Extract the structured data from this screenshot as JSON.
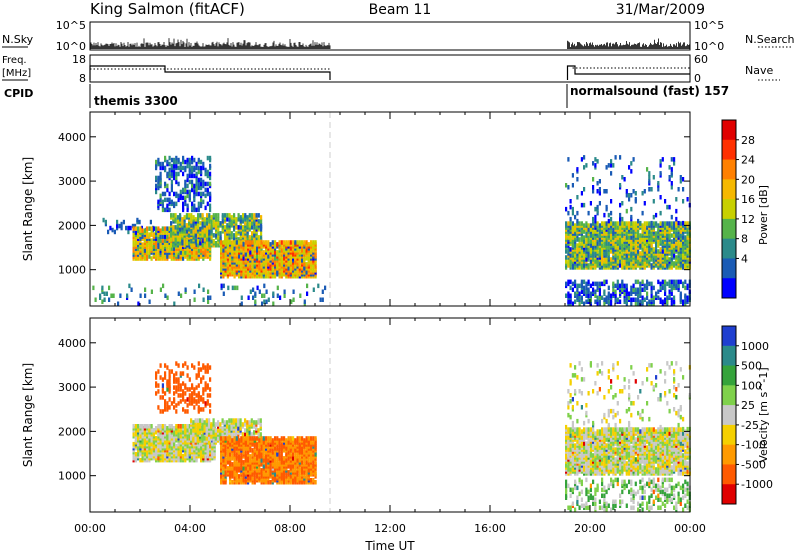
{
  "header": {
    "station": "King Salmon (fitACF)",
    "beam": "Beam 11",
    "date": "31/Mar/2009"
  },
  "top_panels": {
    "nsky_label": "N.Sky",
    "nsearch_label": "N.Search",
    "count_ticks": [
      "10^5",
      "10^0"
    ],
    "freq_label_1": "Freq.",
    "freq_label_2": "[MHz]",
    "freq_ticks": [
      "18",
      "8"
    ],
    "nave_label": "Nave",
    "nave_ticks": [
      "60",
      "0"
    ],
    "cpid_label": "CPID",
    "cpid_segments": [
      {
        "name": "themis 3300",
        "start_hr": 0.0,
        "end_hr": 9.6
      },
      {
        "name": "normalsound (fast) 157",
        "start_hr": 19.1,
        "end_hr": 24.0
      }
    ]
  },
  "chart_data": [
    {
      "type": "heatmap",
      "panel": "power",
      "ylabel": "Slant Range [km]",
      "xlabel": "Time UT",
      "x_ticks": [
        "00:00",
        "04:00",
        "08:00",
        "12:00",
        "16:00",
        "20:00",
        "00:00"
      ],
      "x_range_hr": [
        0,
        24
      ],
      "y_ticks": [
        1000,
        2000,
        3000,
        4000
      ],
      "y_range_km": [
        180,
        4560
      ],
      "colorbar": {
        "label": "Power [dB]",
        "ticks": [
          "28",
          "24",
          "20",
          "16",
          "12",
          "8",
          "4"
        ],
        "range": [
          0,
          32
        ],
        "colors": [
          "#0000ff",
          "#1a5bb5",
          "#2b8a8a",
          "#55b34a",
          "#c8d000",
          "#f5b800",
          "#ff8000",
          "#ff3000",
          "#e00000"
        ]
      },
      "scatter_regions": [
        {
          "t0": 0.5,
          "t1": 2.5,
          "r0": 1800,
          "r1": 2100,
          "value": 5,
          "density": 0.25
        },
        {
          "t0": 1.7,
          "t1": 4.8,
          "r0": 1200,
          "r1": 1900,
          "value": 18,
          "density": 0.85
        },
        {
          "t0": 3.2,
          "t1": 6.8,
          "r0": 1500,
          "r1": 2200,
          "value": 14,
          "density": 0.7
        },
        {
          "t0": 2.6,
          "t1": 4.8,
          "r0": 2300,
          "r1": 3500,
          "value": 6,
          "density": 0.35
        },
        {
          "t0": 5.2,
          "t1": 9.0,
          "r0": 800,
          "r1": 1600,
          "value": 20,
          "density": 0.9
        },
        {
          "t0": 0.0,
          "t1": 9.4,
          "r0": 180,
          "r1": 600,
          "value": 8,
          "density": 0.1
        },
        {
          "t0": 19.0,
          "t1": 24.0,
          "r0": 1000,
          "r1": 2000,
          "value": 14,
          "density": 0.85
        },
        {
          "t0": 19.0,
          "t1": 24.0,
          "r0": 180,
          "r1": 700,
          "value": 6,
          "density": 0.45
        },
        {
          "t0": 19.0,
          "t1": 24.0,
          "r0": 2000,
          "r1": 3500,
          "value": 5,
          "density": 0.08
        }
      ]
    },
    {
      "type": "heatmap",
      "panel": "velocity",
      "ylabel": "Slant Range [km]",
      "xlabel": "Time UT",
      "x_ticks": [
        "00:00",
        "04:00",
        "08:00",
        "12:00",
        "16:00",
        "20:00",
        "00:00"
      ],
      "x_range_hr": [
        0,
        24
      ],
      "y_ticks": [
        1000,
        2000,
        3000,
        4000
      ],
      "y_range_km": [
        180,
        4560
      ],
      "colorbar": {
        "label": "Velocity [m s^-1]",
        "ticks": [
          "1000",
          "500",
          "100",
          "25",
          "-25",
          "-100",
          "-500",
          "-1000"
        ],
        "colors": [
          "#1f3fd0",
          "#2b8a8a",
          "#35a33b",
          "#7fd14b",
          "#c8c8c8",
          "#f5d000",
          "#ff9a00",
          "#ff5a00",
          "#e00000"
        ]
      },
      "scatter_regions": [
        {
          "t0": 1.7,
          "t1": 5.0,
          "r0": 1300,
          "r1": 2100,
          "value": 0,
          "density": 0.85
        },
        {
          "t0": 4.0,
          "t1": 6.8,
          "r0": 1700,
          "r1": 2200,
          "value": 0,
          "density": 0.7
        },
        {
          "t0": 5.2,
          "t1": 9.0,
          "r0": 800,
          "r1": 1800,
          "value": -300,
          "density": 0.85
        },
        {
          "t0": 2.6,
          "t1": 4.8,
          "r0": 2400,
          "r1": 3500,
          "value": -500,
          "density": 0.25
        },
        {
          "t0": 19.0,
          "t1": 24.0,
          "r0": 1000,
          "r1": 2000,
          "value": 0,
          "density": 0.85
        },
        {
          "t0": 19.0,
          "t1": 24.0,
          "r0": 180,
          "r1": 900,
          "value": 50,
          "density": 0.25
        },
        {
          "t0": 19.0,
          "t1": 24.0,
          "r0": 2000,
          "r1": 3500,
          "value": 0,
          "density": 0.08
        }
      ]
    }
  ]
}
